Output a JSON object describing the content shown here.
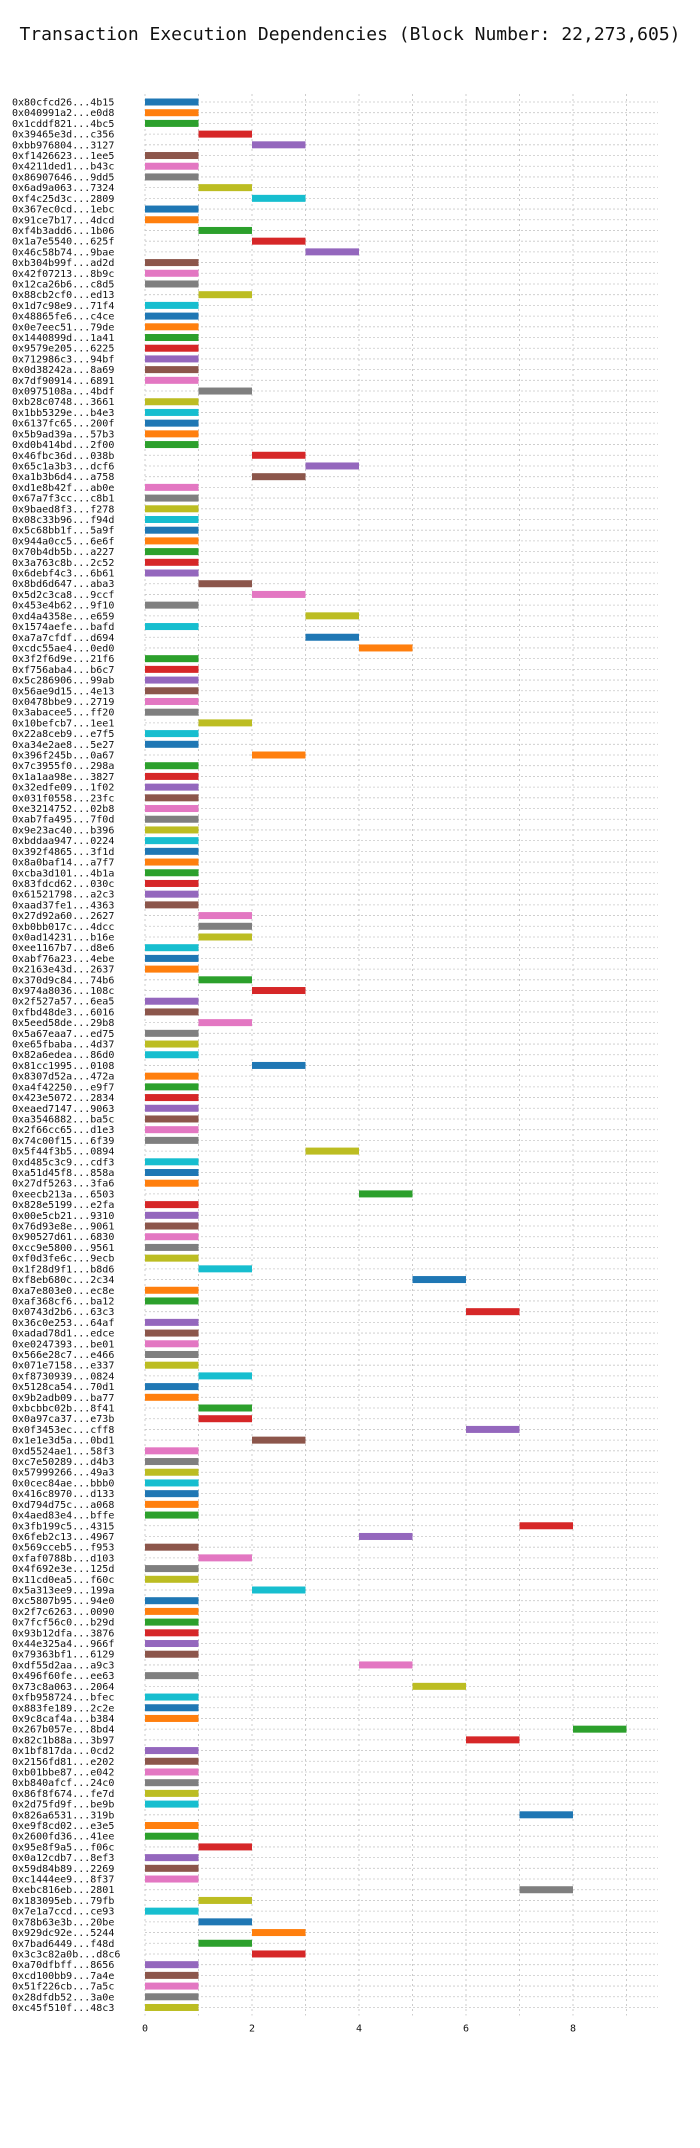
{
  "chart_data": {
    "type": "bar",
    "orientation": "horizontal-gantt",
    "title": "Transaction Execution Dependencies (Block Number: 22,273,605)",
    "xlim": [
      0,
      9.5
    ],
    "xticks": [
      0,
      2,
      4,
      6,
      8
    ],
    "grid": true,
    "colors": [
      "#1f77b4",
      "#ff7f0e",
      "#2ca02c",
      "#d62728",
      "#9467bd",
      "#8c564b",
      "#e377c2",
      "#7f7f7f",
      "#bcbd22",
      "#17becf"
    ],
    "transactions": [
      [
        "0x80cfcd26...4b15",
        0
      ],
      [
        "0x040991a2...e0d8",
        0
      ],
      [
        "0x1cddf821...4bc5",
        0
      ],
      [
        "0x39465e3d...c356",
        1
      ],
      [
        "0xbb976804...3127",
        2
      ],
      [
        "0xf1426623...1ee5",
        0
      ],
      [
        "0x4211ded1...b43c",
        0
      ],
      [
        "0x86907646...9dd5",
        0
      ],
      [
        "0x6ad9a063...7324",
        1
      ],
      [
        "0xf4c25d3c...2809",
        2
      ],
      [
        "0x367ec0cd...1ebc",
        0
      ],
      [
        "0x91ce7b17...4dcd",
        0
      ],
      [
        "0xf4b3add6...1b06",
        1
      ],
      [
        "0x1a7e5540...625f",
        2
      ],
      [
        "0x46c58b74...9bae",
        3
      ],
      [
        "0xb304b99f...ad2d",
        0
      ],
      [
        "0x42f07213...8b9c",
        0
      ],
      [
        "0x12ca26b6...c8d5",
        0
      ],
      [
        "0x88cb2cf0...ed13",
        1
      ],
      [
        "0x1d7c98e9...71f4",
        0
      ],
      [
        "0x48865fe6...c4ce",
        0
      ],
      [
        "0x0e7eec51...79de",
        0
      ],
      [
        "0x1440899d...1a41",
        0
      ],
      [
        "0x9579e205...6225",
        0
      ],
      [
        "0x712986c3...94bf",
        0
      ],
      [
        "0x0d38242a...8a69",
        0
      ],
      [
        "0x7df90914...6891",
        0
      ],
      [
        "0x0975108a...4bdf",
        1
      ],
      [
        "0xb28c0748...3661",
        0
      ],
      [
        "0x1bb5329e...b4e3",
        0
      ],
      [
        "0x6137fc65...200f",
        0
      ],
      [
        "0x5b9ad39a...57b3",
        0
      ],
      [
        "0xd0b414bd...2f00",
        0
      ],
      [
        "0x46fbc36d...038b",
        2
      ],
      [
        "0x65c1a3b3...dcf6",
        3
      ],
      [
        "0xa1b3b6d4...a758",
        2
      ],
      [
        "0xd1e8b42f...ab0e",
        0
      ],
      [
        "0x67a7f3cc...c8b1",
        0
      ],
      [
        "0x9baed8f3...f278",
        0
      ],
      [
        "0x08c33b96...f94d",
        0
      ],
      [
        "0x5c68bb1f...5a9f",
        0
      ],
      [
        "0x944a0cc5...6e6f",
        0
      ],
      [
        "0x70b4db5b...a227",
        0
      ],
      [
        "0x3a763c8b...2c52",
        0
      ],
      [
        "0x6debf4c3...6b61",
        0
      ],
      [
        "0x8bd6d647...aba3",
        1
      ],
      [
        "0x5d2c3ca8...9ccf",
        2
      ],
      [
        "0x453e4b62...9f10",
        0
      ],
      [
        "0xd4a4358e...e659",
        3
      ],
      [
        "0x1574aefe...bafd",
        0
      ],
      [
        "0xa7a7cfdf...d694",
        3
      ],
      [
        "0xcdc55ae4...0ed0",
        4
      ],
      [
        "0x3f2f6d9e...21f6",
        0
      ],
      [
        "0xf756aba4...b6c7",
        0
      ],
      [
        "0x5c286906...99ab",
        0
      ],
      [
        "0x56ae9d15...4e13",
        0
      ],
      [
        "0x0478bbe9...2719",
        0
      ],
      [
        "0x3abacee5...ff20",
        0
      ],
      [
        "0x10befcb7...1ee1",
        1
      ],
      [
        "0x22a8ceb9...e7f5",
        0
      ],
      [
        "0xa34e2ae8...5e27",
        0
      ],
      [
        "0x396f245b...0a67",
        2
      ],
      [
        "0x7c3955f0...298a",
        0
      ],
      [
        "0x1a1aa98e...3827",
        0
      ],
      [
        "0x32edfe09...1f02",
        0
      ],
      [
        "0x031f0558...23fc",
        0
      ],
      [
        "0xe3214752...02b8",
        0
      ],
      [
        "0xab7fa495...7f0d",
        0
      ],
      [
        "0x9e23ac40...b396",
        0
      ],
      [
        "0xbddaa947...0224",
        0
      ],
      [
        "0x392f4865...3f1d",
        0
      ],
      [
        "0x8a0baf14...a7f7",
        0
      ],
      [
        "0xcba3d101...4b1a",
        0
      ],
      [
        "0x83fdcd62...030c",
        0
      ],
      [
        "0x61521798...a2c3",
        0
      ],
      [
        "0xaad37fe1...4363",
        0
      ],
      [
        "0x27d92a60...2627",
        1
      ],
      [
        "0xb0bb017c...4dcc",
        1
      ],
      [
        "0x0ad14231...b16e",
        1
      ],
      [
        "0xee1167b7...d8e6",
        0
      ],
      [
        "0xabf76a23...4ebe",
        0
      ],
      [
        "0x2163e43d...2637",
        0
      ],
      [
        "0x370d9c84...74b6",
        1
      ],
      [
        "0x974a8036...108c",
        2
      ],
      [
        "0x2f527a57...6ea5",
        0
      ],
      [
        "0xfbd48de3...6016",
        0
      ],
      [
        "0x5eed58de...29b8",
        1
      ],
      [
        "0x5a67eaa7...ed75",
        0
      ],
      [
        "0xe65fbaba...4d37",
        0
      ],
      [
        "0x82a6edea...86d0",
        0
      ],
      [
        "0x81cc1995...0108",
        2
      ],
      [
        "0x8307d52a...472a",
        0
      ],
      [
        "0xa4f42250...e9f7",
        0
      ],
      [
        "0x423e5072...2834",
        0
      ],
      [
        "0xeaed7147...9063",
        0
      ],
      [
        "0xa3546882...ba5c",
        0
      ],
      [
        "0x2f66cc65...d1e3",
        0
      ],
      [
        "0x74c00f15...6f39",
        0
      ],
      [
        "0x5f44f3b5...0894",
        3
      ],
      [
        "0xd485c3c9...cdf3",
        0
      ],
      [
        "0xa51d45f8...858a",
        0
      ],
      [
        "0x27df5263...3fa6",
        0
      ],
      [
        "0xeecb213a...6503",
        4
      ],
      [
        "0x828e5199...e2fa",
        0
      ],
      [
        "0x00e5cb21...9310",
        0
      ],
      [
        "0x76d93e8e...9061",
        0
      ],
      [
        "0x90527d61...6830",
        0
      ],
      [
        "0xcc9e5800...9561",
        0
      ],
      [
        "0xf0d3fe6c...9ecb",
        0
      ],
      [
        "0x1f28d9f1...b8d6",
        1
      ],
      [
        "0xf8eb680c...2c34",
        5
      ],
      [
        "0xa7e803e0...ec8e",
        0
      ],
      [
        "0xaf368cf6...ba12",
        0
      ],
      [
        "0x0743d2b6...63c3",
        6
      ],
      [
        "0x36c0e253...64af",
        0
      ],
      [
        "0xadad78d1...edce",
        0
      ],
      [
        "0xe0247393...be01",
        0
      ],
      [
        "0x566e28c7...e466",
        0
      ],
      [
        "0x071e7158...e337",
        0
      ],
      [
        "0xf8730939...0824",
        1
      ],
      [
        "0x5128ca54...70d1",
        0
      ],
      [
        "0x9b2adb09...ba77",
        0
      ],
      [
        "0xbcbbc02b...8f41",
        1
      ],
      [
        "0x0a97ca37...e73b",
        1
      ],
      [
        "0x0f3453ec...cff8",
        6
      ],
      [
        "0x1e1e3d5a...0bd1",
        2
      ],
      [
        "0xd5524ae1...58f3",
        0
      ],
      [
        "0xc7e50289...d4b3",
        0
      ],
      [
        "0x57999266...49a3",
        0
      ],
      [
        "0x0cec84ae...bbb0",
        0
      ],
      [
        "0x416c8970...d133",
        0
      ],
      [
        "0xd794d75c...a068",
        0
      ],
      [
        "0x4aed83e4...bffe",
        0
      ],
      [
        "0x3fb199c5...4315",
        7
      ],
      [
        "0x6feb2c13...4967",
        4
      ],
      [
        "0x569cceb5...f953",
        0
      ],
      [
        "0xfaf0788b...d103",
        1
      ],
      [
        "0x4f692e3e...125d",
        0
      ],
      [
        "0x11cd0ea5...f60c",
        0
      ],
      [
        "0x5a313ee9...199a",
        2
      ],
      [
        "0xc5807b95...94e0",
        0
      ],
      [
        "0x2f7c6263...0090",
        0
      ],
      [
        "0x7fcf56c0...b29d",
        0
      ],
      [
        "0x93b12dfa...3876",
        0
      ],
      [
        "0x44e325a4...966f",
        0
      ],
      [
        "0x79363bf1...6129",
        0
      ],
      [
        "0xdf55d2aa...a9c3",
        4
      ],
      [
        "0x496f60fe...ee63",
        0
      ],
      [
        "0x73c8a063...2064",
        5
      ],
      [
        "0xfb958724...bfec",
        0
      ],
      [
        "0x883fe189...2c2e",
        0
      ],
      [
        "0x9c8caf4a...b384",
        0
      ],
      [
        "0x267b057e...8bd4",
        8
      ],
      [
        "0x82c1b88a...3b97",
        6
      ],
      [
        "0x1bf817da...0cd2",
        0
      ],
      [
        "0x2156fd81...e202",
        0
      ],
      [
        "0xb01bbe87...e042",
        0
      ],
      [
        "0xb840afcf...24c0",
        0
      ],
      [
        "0x86f8f674...fe7d",
        0
      ],
      [
        "0x2d75fd9f...be9b",
        0
      ],
      [
        "0x826a6531...319b",
        7
      ],
      [
        "0xe9f8cd02...e3e5",
        0
      ],
      [
        "0x2600fd36...41ee",
        0
      ],
      [
        "0x95e8f9a5...f06c",
        1
      ],
      [
        "0x0a12cdb7...8ef3",
        0
      ],
      [
        "0x59d84b89...2269",
        0
      ],
      [
        "0xc1444ee9...8f37",
        0
      ],
      [
        "0xebc816eb...2801",
        7
      ],
      [
        "0x183095eb...79fb",
        1
      ],
      [
        "0x7e1a7ccd...ce93",
        0
      ],
      [
        "0x78b63e3b...20be",
        1
      ],
      [
        "0x929dc92e...5244",
        2
      ],
      [
        "0x7bad6449...f48d",
        1
      ],
      [
        "0x3c3c82a0b...d8c6",
        2
      ],
      [
        "0xa70dfbff...8656",
        0
      ],
      [
        "0xcd100bb9...7a4e",
        0
      ],
      [
        "0x51f226cb...7a5c",
        0
      ],
      [
        "0x28dfdb52...3a0e",
        0
      ],
      [
        "0xc45f510f...48c3",
        0
      ]
    ]
  }
}
